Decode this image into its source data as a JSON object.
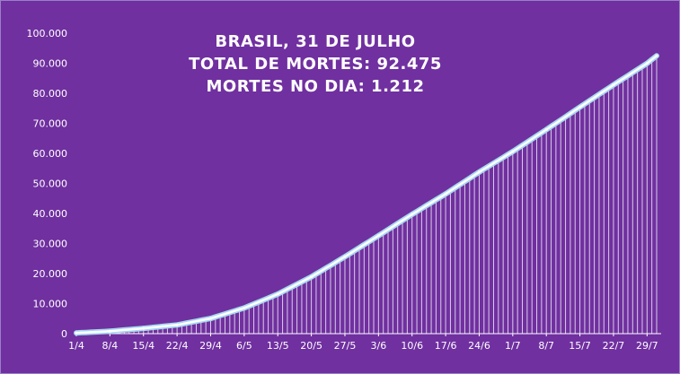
{
  "chart_data": {
    "type": "area",
    "title_lines": [
      "BRASIL,  31 DE JULHO",
      "TOTAL DE MORTES: 92.475",
      "MORTES NO DIA: 1.212"
    ],
    "xlabel": "",
    "ylabel": "",
    "ylim": [
      0,
      100000
    ],
    "y_ticks": [
      "0",
      "10.000",
      "20.000",
      "30.000",
      "40.000",
      "50.000",
      "60.000",
      "70.000",
      "80.000",
      "90.000",
      "100.000"
    ],
    "x_tick_labels": [
      "1/4",
      "8/4",
      "15/4",
      "22/4",
      "29/4",
      "6/5",
      "13/5",
      "20/5",
      "27/5",
      "3/6",
      "10/6",
      "17/6",
      "24/6",
      "1/7",
      "8/7",
      "15/7",
      "22/7",
      "29/7"
    ],
    "series": [
      {
        "x": [
          "1/4",
          "8/4",
          "15/4",
          "22/4",
          "29/4",
          "6/5",
          "13/5",
          "20/5",
          "27/5",
          "3/6",
          "10/6",
          "17/6",
          "24/6",
          "1/7",
          "8/7",
          "15/7",
          "22/7",
          "29/7",
          "31/7"
        ],
        "values": [
          240,
          800,
          1760,
          2900,
          5050,
          8550,
          13150,
          18900,
          25600,
          32600,
          39700,
          46500,
          53800,
          60600,
          67900,
          75400,
          82800,
          89950,
          92475
        ]
      }
    ],
    "grid": false,
    "legend": "none",
    "colors": {
      "background": "#7030a0",
      "line": "#ffffff",
      "glow": "#a8d8f0",
      "fill": "#ffffff",
      "text": "#ffffff"
    }
  }
}
